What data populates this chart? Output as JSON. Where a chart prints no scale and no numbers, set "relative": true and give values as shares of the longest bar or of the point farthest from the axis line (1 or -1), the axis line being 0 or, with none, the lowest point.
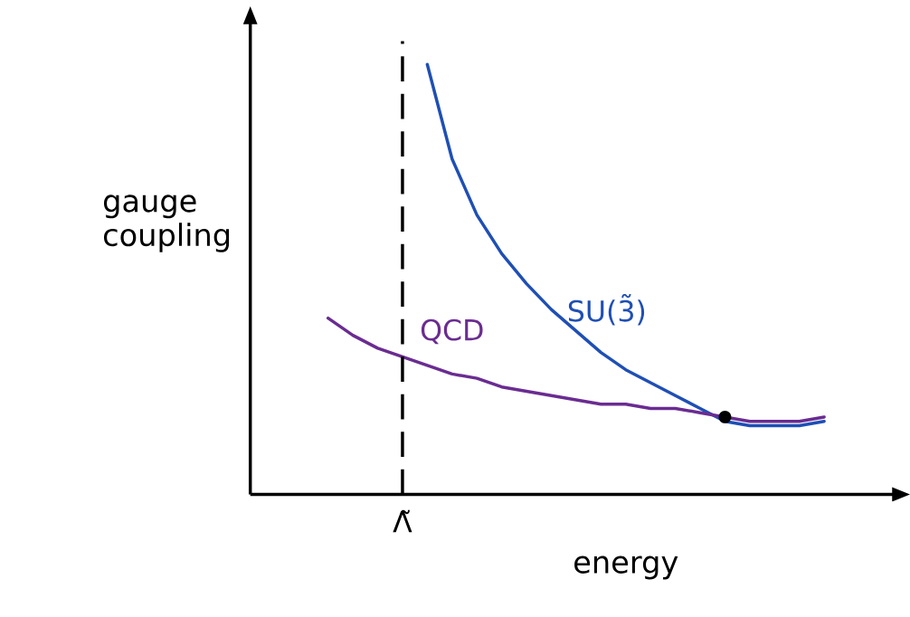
{
  "chart_data": {
    "type": "line",
    "relative": true,
    "xlabel": "energy",
    "ylabel": "gauge coupling",
    "categories": [
      null,
      null,
      null,
      null,
      null,
      null,
      null,
      null,
      null,
      null,
      null,
      null,
      null,
      null,
      null,
      null,
      null,
      null,
      null,
      null,
      null
    ],
    "series": [
      {
        "name": "SU(3̃)",
        "color": "#1f4fb5",
        "values": [
          null,
          null,
          null,
          null,
          1.0,
          0.78,
          0.65,
          0.56,
          0.49,
          0.43,
          0.38,
          0.33,
          0.29,
          0.26,
          0.23,
          0.2,
          0.17,
          0.16,
          0.16,
          0.16,
          0.17
        ]
      },
      {
        "name": "QCD",
        "color": "#6a2c91",
        "values": [
          0.41,
          0.37,
          0.34,
          0.32,
          0.3,
          0.28,
          0.27,
          0.25,
          0.24,
          0.23,
          0.22,
          0.21,
          0.21,
          0.2,
          0.2,
          0.19,
          0.18,
          0.17,
          0.17,
          0.17,
          0.18
        ]
      }
    ],
    "annotations": [
      "Λ̃"
    ]
  }
}
